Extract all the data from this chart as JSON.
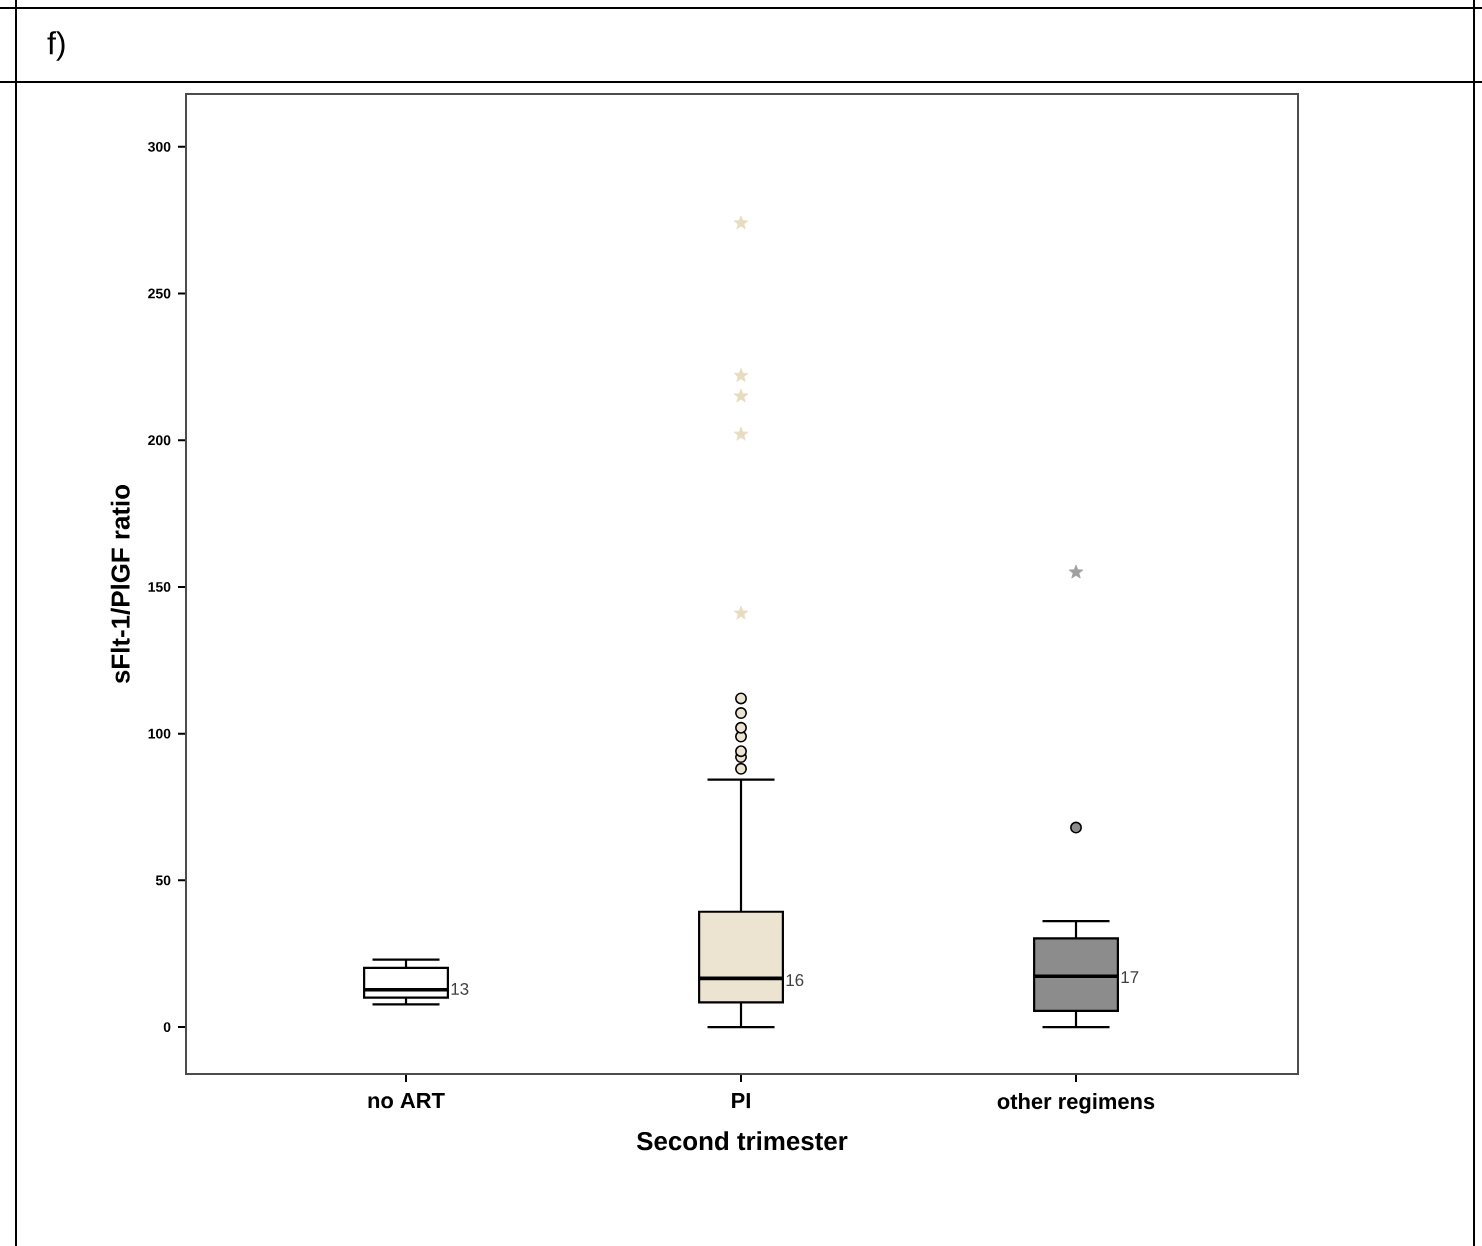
{
  "chart_data": {
    "type": "box",
    "title": "f)",
    "xlabel": "Second trimester",
    "ylabel": "sFlt-1/PlGF ratio",
    "categories": [
      "no ART",
      "PI",
      "other regimens"
    ],
    "colors": [
      "#ffffff",
      "#ece4d0",
      "#8c8c8c"
    ],
    "boxes": [
      {
        "low": 7.7,
        "q1": 10,
        "median": 12.7,
        "q3": 20.2,
        "high": 23
      },
      {
        "low": 0,
        "q1": 8.4,
        "median": 16.6,
        "q3": 39.3,
        "high": 84.3,
        "outliers": [
          88,
          92,
          94,
          99,
          102,
          107,
          112
        ]
      },
      {
        "low": 0,
        "q1": 5.5,
        "median": 17.3,
        "q3": 30.2,
        "high": 36.1,
        "outliers": [
          68
        ]
      }
    ],
    "series": [
      {
        "type": "scatter",
        "marker": "star",
        "x": [
          "PI",
          "PI",
          "PI",
          "PI",
          "PI",
          "other regimens"
        ],
        "values": [
          274,
          222,
          215,
          202,
          141,
          155
        ],
        "colors": [
          "#e8dcc0",
          "#e8dcc0",
          "#e8dcc0",
          "#e8dcc0",
          "#e8dcc0",
          "#a0a0a0"
        ]
      }
    ],
    "annotations": [
      {
        "text": "13",
        "x": "no ART",
        "y": 13
      },
      {
        "text": "16",
        "x": "PI",
        "y": 16
      },
      {
        "text": "17",
        "x": "other regimens",
        "y": 17
      }
    ],
    "ylim": [
      -16,
      318
    ],
    "yticks": [
      0,
      50,
      100,
      150,
      200,
      250,
      300
    ],
    "grid": false
  }
}
